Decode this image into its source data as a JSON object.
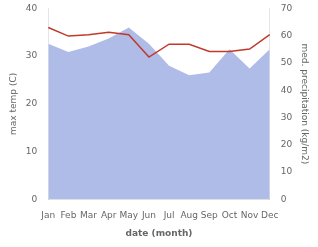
{
  "chart_data": {
    "type": "line",
    "xlabel": "date (month)",
    "ylabel": "max temp (C)",
    "y2label": "med. precipitation (kg/m2)",
    "categories": [
      "Jan",
      "Feb",
      "Mar",
      "Apr",
      "May",
      "Jun",
      "Jul",
      "Aug",
      "Sep",
      "Oct",
      "Nov",
      "Dec"
    ],
    "series": [
      {
        "type": "area",
        "axis": "y2",
        "color": "#b0bce8",
        "values": [
          57.0,
          54.0,
          56.0,
          59.0,
          63.0,
          57.0,
          49.0,
          45.5,
          46.5,
          55.0,
          48.0,
          55.0
        ]
      },
      {
        "type": "line",
        "color": "#c0392b",
        "values": [
          36.0,
          34.2,
          34.5,
          35.0,
          34.5,
          29.8,
          32.5,
          32.5,
          31.0,
          31.0,
          31.5,
          34.5
        ]
      }
    ],
    "ylim": [
      0,
      40
    ],
    "yticks": [
      0,
      10,
      20,
      30,
      40
    ],
    "y2lim": [
      0,
      70
    ],
    "y2ticks": [
      0,
      10,
      20,
      30,
      40,
      50,
      60,
      70
    ],
    "grid": false
  }
}
